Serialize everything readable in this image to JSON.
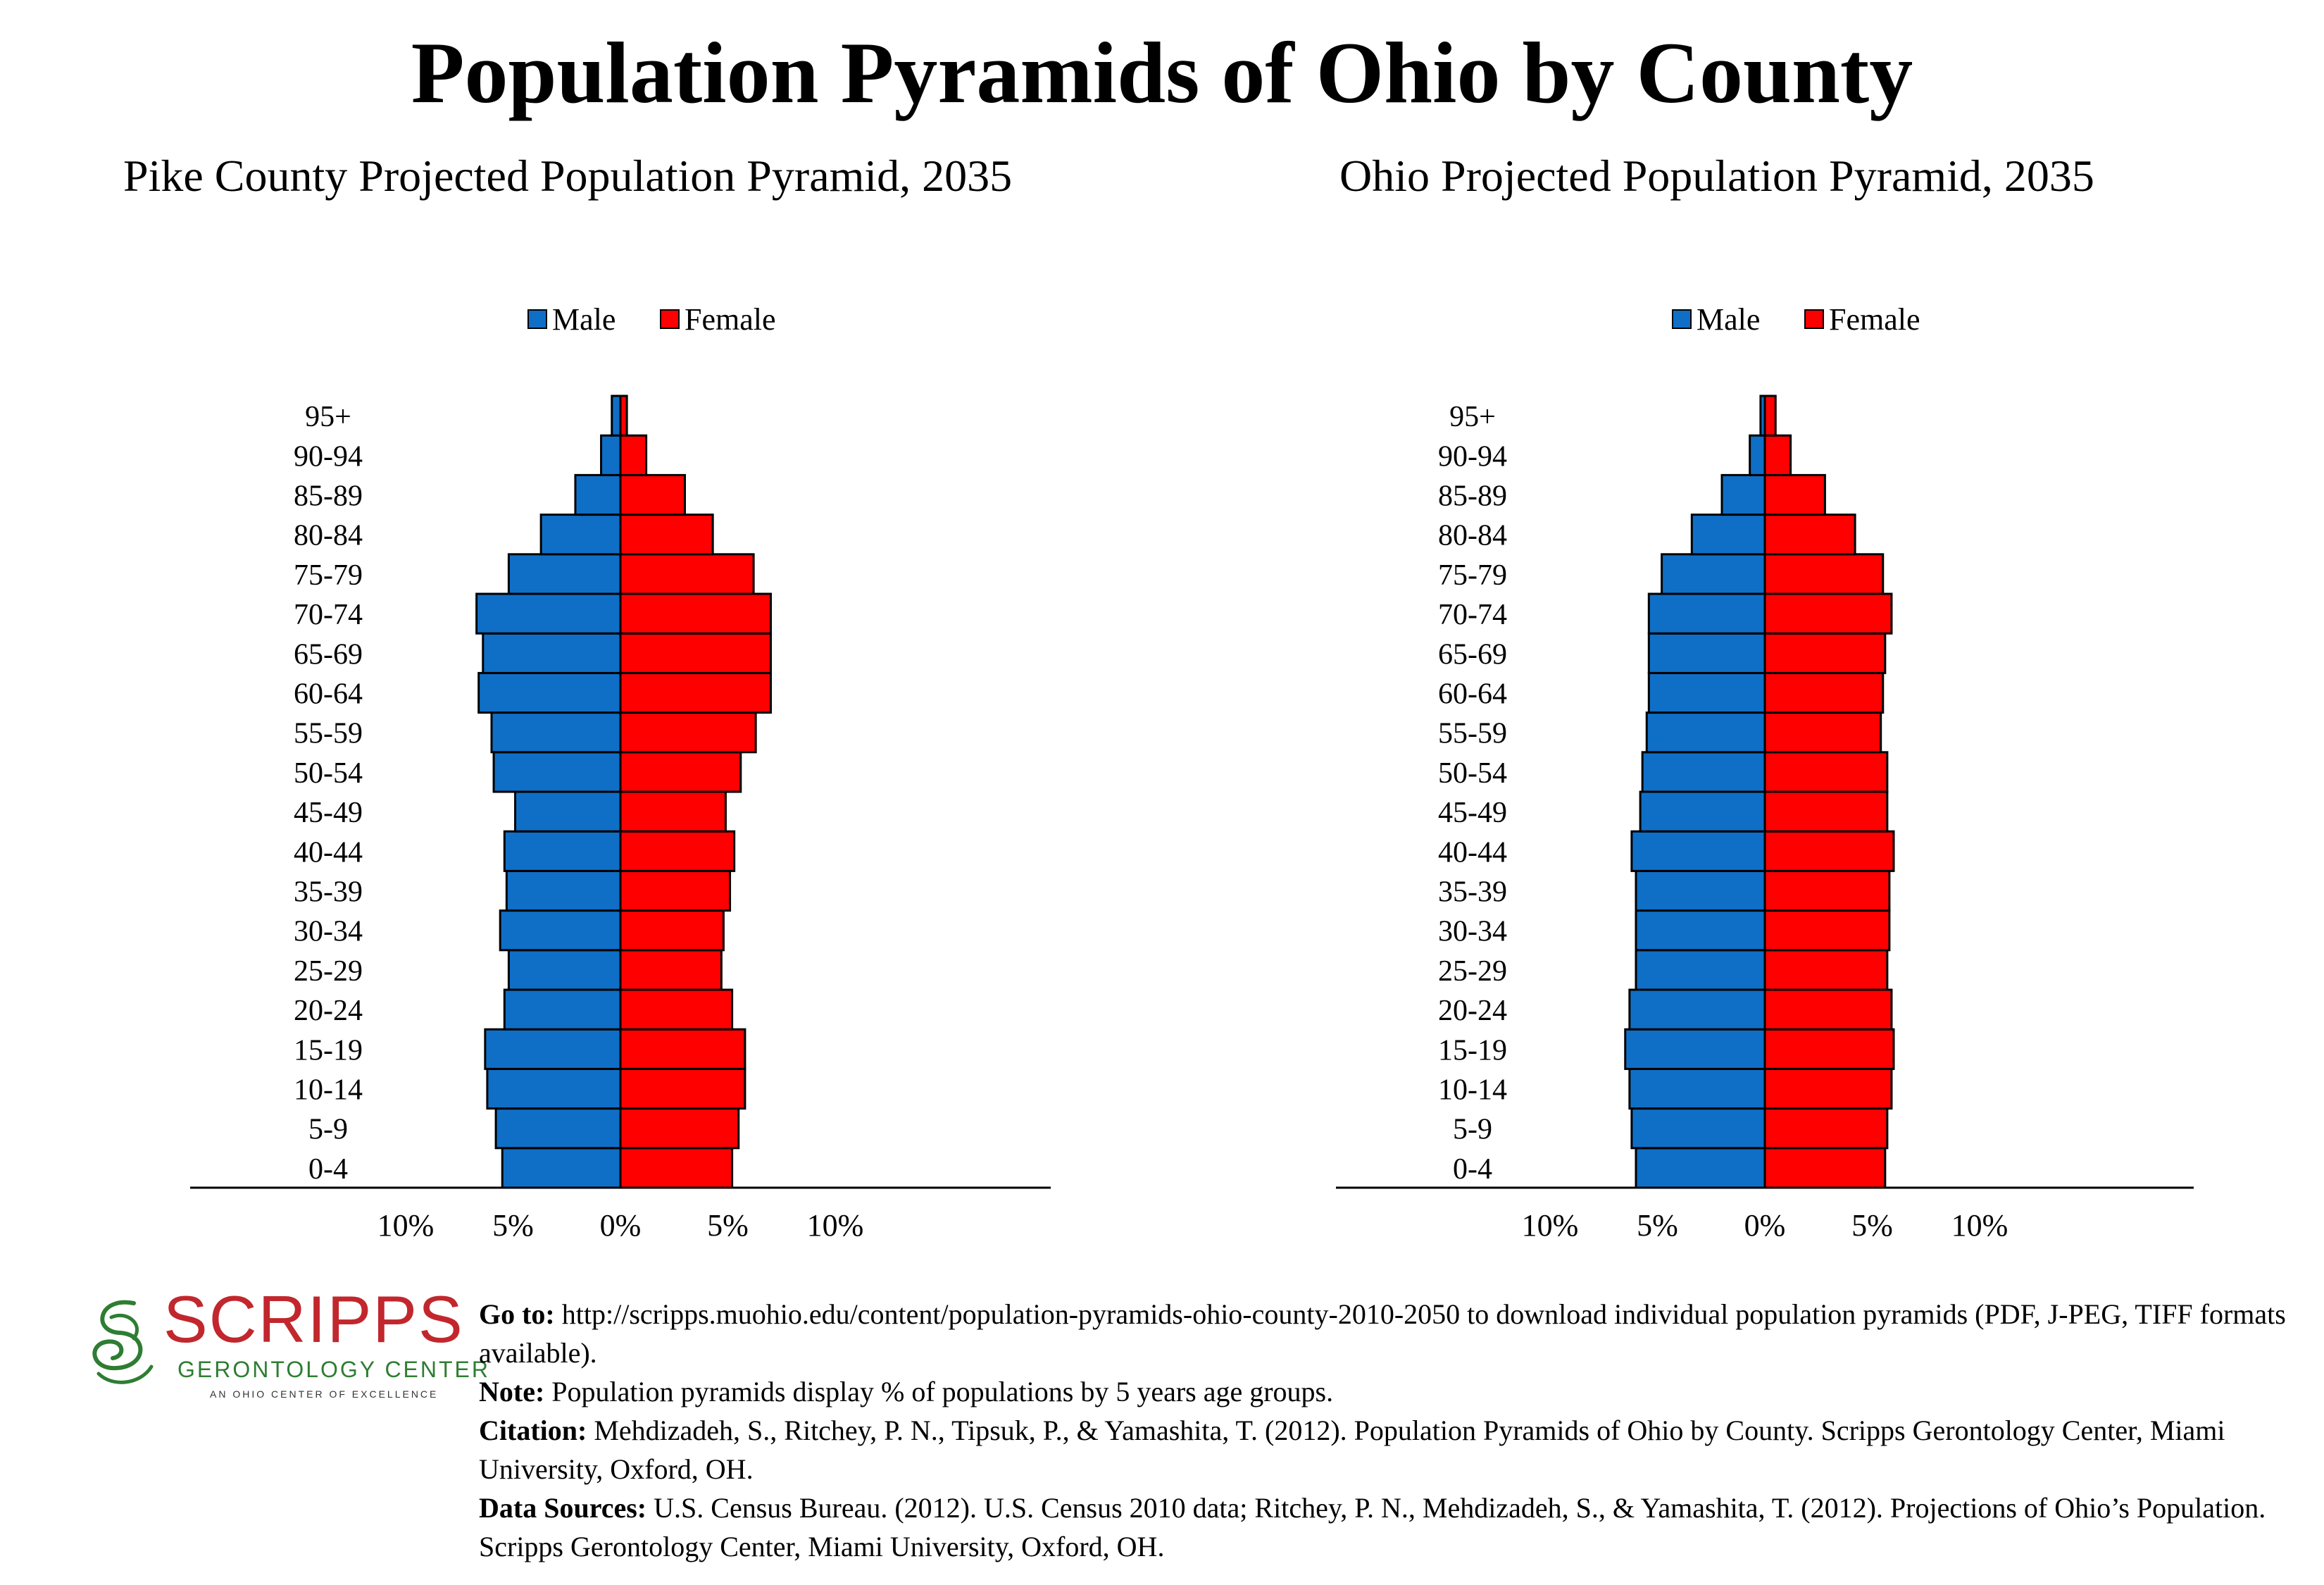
{
  "title": "Population Pyramids of Ohio by County",
  "chart_data": [
    {
      "type": "bar",
      "title": "Pike County Projected Population Pyramid, 2035",
      "categories": [
        "0-4",
        "5-9",
        "10-14",
        "15-19",
        "20-24",
        "25-29",
        "30-34",
        "35-39",
        "40-44",
        "45-49",
        "50-54",
        "55-59",
        "60-64",
        "65-69",
        "70-74",
        "75-79",
        "80-84",
        "85-89",
        "90-94",
        "95+"
      ],
      "series": [
        {
          "name": "Male",
          "color": "#0f6fc6",
          "values": [
            5.5,
            5.8,
            6.2,
            6.3,
            5.4,
            5.2,
            5.6,
            5.3,
            5.4,
            4.9,
            5.9,
            6.0,
            6.6,
            6.4,
            6.7,
            5.2,
            3.7,
            2.1,
            0.9,
            0.4
          ]
        },
        {
          "name": "Female",
          "color": "#ff0000",
          "values": [
            5.2,
            5.5,
            5.8,
            5.8,
            5.2,
            4.7,
            4.8,
            5.1,
            5.3,
            4.9,
            5.6,
            6.3,
            7.0,
            7.0,
            7.0,
            6.2,
            4.3,
            3.0,
            1.2,
            0.3
          ]
        }
      ],
      "xlim": [
        -10,
        10
      ],
      "tick_labels": [
        "10%",
        "5%",
        "0%",
        "5%",
        "10%"
      ],
      "legend": "top"
    },
    {
      "type": "bar",
      "title": "Ohio Projected Population Pyramid, 2035",
      "categories": [
        "0-4",
        "5-9",
        "10-14",
        "15-19",
        "20-24",
        "25-29",
        "30-34",
        "35-39",
        "40-44",
        "45-49",
        "50-54",
        "55-59",
        "60-64",
        "65-69",
        "70-74",
        "75-79",
        "80-84",
        "85-89",
        "90-94",
        "95+"
      ],
      "series": [
        {
          "name": "Male",
          "color": "#0f6fc6",
          "values": [
            6.0,
            6.2,
            6.3,
            6.5,
            6.3,
            6.0,
            6.0,
            6.0,
            6.2,
            5.8,
            5.7,
            5.5,
            5.4,
            5.4,
            5.4,
            4.8,
            3.4,
            2.0,
            0.7,
            0.2
          ]
        },
        {
          "name": "Female",
          "color": "#ff0000",
          "values": [
            5.6,
            5.7,
            5.9,
            6.0,
            5.9,
            5.7,
            5.8,
            5.8,
            6.0,
            5.7,
            5.7,
            5.4,
            5.5,
            5.6,
            5.9,
            5.5,
            4.2,
            2.8,
            1.2,
            0.5
          ]
        }
      ],
      "xlim": [
        -10,
        10
      ],
      "tick_labels": [
        "10%",
        "5%",
        "0%",
        "5%",
        "10%"
      ],
      "legend": "top"
    }
  ],
  "logo": {
    "word": "SCRIPPS",
    "sub": "GERONTOLOGY CENTER",
    "tag": "AN OHIO CENTER OF EXCELLENCE"
  },
  "footer": {
    "goto_label": "Go to:",
    "goto_text": " http://scripps.muohio.edu/content/population-pyramids-ohio-county-2010-2050 to download individual population pyramids (PDF, J-PEG, TIFF formats available).",
    "note_label": "Note:",
    "note_text": " Population pyramids display % of populations by 5 years age groups.",
    "citation_label": "Citation:",
    "citation_text": " Mehdizadeh, S., Ritchey, P. N., Tipsuk, P., & Yamashita, T. (2012). Population Pyramids of Ohio by County. Scripps Gerontology Center, Miami University, Oxford, OH.",
    "sources_label": "Data Sources:",
    "sources_text": " U.S. Census Bureau. (2012). U.S. Census 2010 data; Ritchey, P. N., Mehdizadeh, S., & Yamashita, T. (2012). Projections of Ohio’s Population. Scripps Gerontology Center, Miami University, Oxford, OH."
  }
}
